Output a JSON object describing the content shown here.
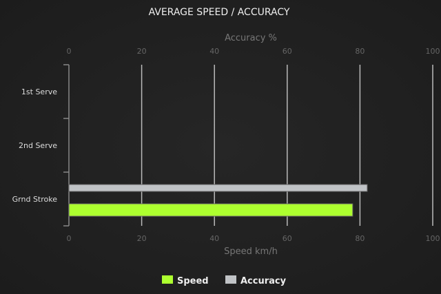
{
  "chart_data": {
    "type": "bar",
    "orientation": "horizontal",
    "title": "AVERAGE SPEED / ACCURACY",
    "categories": [
      "1st Serve",
      "2nd Serve",
      "Grnd Stroke"
    ],
    "x_top_label": "Accuracy %",
    "x_bottom_label": "Speed km/h",
    "xlim": [
      0,
      100
    ],
    "ticks": [
      "0",
      "20",
      "40",
      "60",
      "80",
      "100"
    ],
    "grid": true,
    "legend_position": "bottom",
    "series": [
      {
        "name": "Speed",
        "axis": "bottom",
        "color": "#adff2f",
        "values": [
          null,
          null,
          78
        ]
      },
      {
        "name": "Accuracy",
        "axis": "top",
        "color": "#c0c3c6",
        "values": [
          null,
          null,
          82
        ]
      }
    ]
  }
}
